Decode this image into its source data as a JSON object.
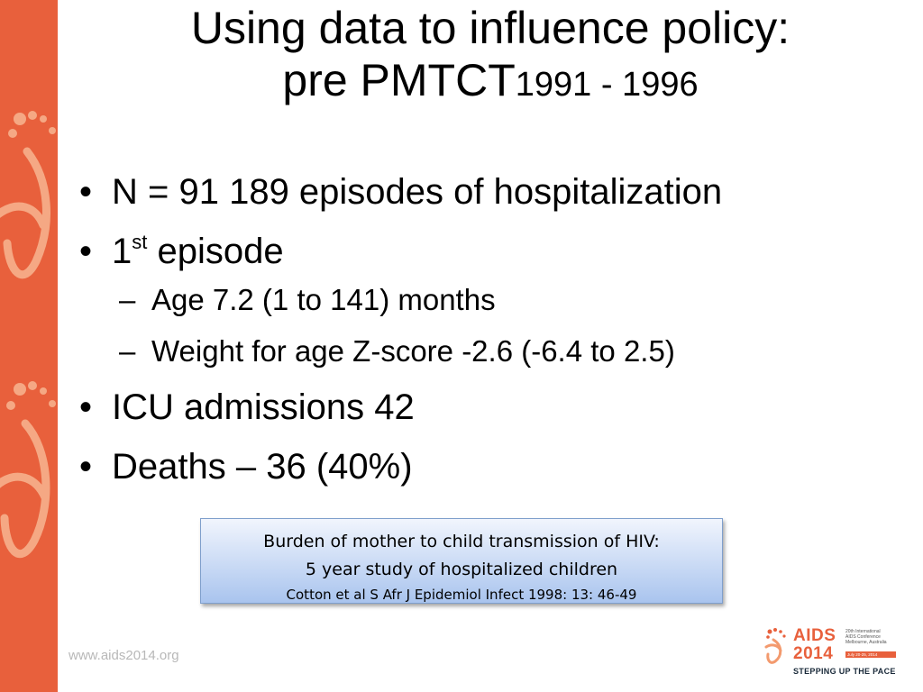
{
  "slide": {
    "title_line1": "Using data to influence policy:",
    "title_line2_main": "pre PMTCT",
    "title_line2_years": "1991 - 1996",
    "bullets": {
      "b1": "N = 91 189 episodes of hospitalization",
      "b2_num": "1",
      "b2_sup": "st",
      "b2_rest": " episode",
      "b2_sub1": "Age 7.2 (1 to 141) months",
      "b2_sub2": "Weight for age Z-score -2.6 (-6.4 to 2.5)",
      "b3": "ICU admissions 42",
      "b4": "Deaths – 36 (40%)"
    },
    "citation": {
      "line1": "Burden of mother to child transmission of HIV:",
      "line2": "5 year study of hospitalized children",
      "line3": "Cotton et al S Afr J Epidemiol Infect 1998: 13: 46-49"
    },
    "footer_url": "www.aids2014.org",
    "logo": {
      "name_line1": "AIDS",
      "name_line2": "2014",
      "conference_line1": "20th International",
      "conference_line2": "AIDS Conference",
      "conference_line3": "Melbourne, Australia",
      "conference_dates": "July 20-25, 2014",
      "tagline": "STEPPING UP THE PACE"
    }
  },
  "colors": {
    "accent_orange": "#e8603c",
    "decor_light": "#f5a884",
    "citation_top": "#f1f5fd",
    "citation_bottom": "#a9c4ee",
    "footer_text": "#b8b8b8"
  },
  "icons": {
    "side_decoration": "footprint-ribbon-icon",
    "logo_mark": "footprint-ribbon-icon"
  }
}
